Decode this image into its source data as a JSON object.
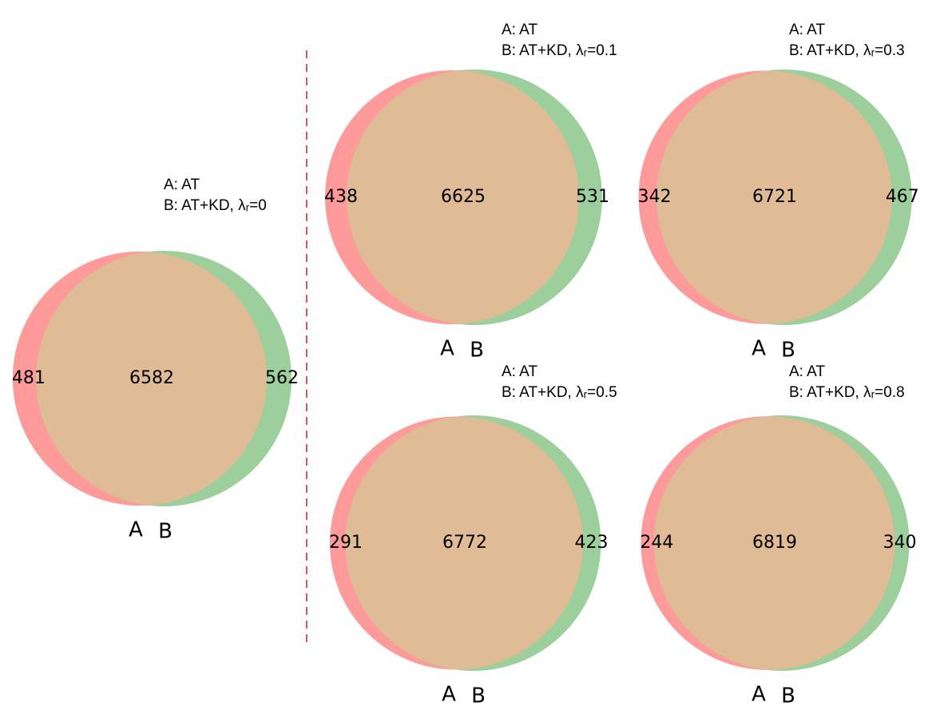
{
  "chart_data": [
    {
      "type": "venn",
      "legend": [
        "A:  AT",
        "B:  AT+KD, λᵣ=0"
      ],
      "set_labels": [
        "A",
        "B"
      ],
      "only_a": 481,
      "both": 6582,
      "only_b": 562,
      "colors": [
        "#ff9a9a",
        "#9ccf9c",
        "#dfbb96"
      ]
    },
    {
      "type": "venn",
      "legend": [
        "A:  AT",
        "B:  AT+KD, λᵣ=0.1"
      ],
      "set_labels": [
        "A",
        "B"
      ],
      "only_a": 438,
      "both": 6625,
      "only_b": 531,
      "colors": [
        "#ff9a9a",
        "#9ccf9c",
        "#dfbb96"
      ]
    },
    {
      "type": "venn",
      "legend": [
        "A:  AT",
        "B:  AT+KD, λᵣ=0.3"
      ],
      "set_labels": [
        "A",
        "B"
      ],
      "only_a": 342,
      "both": 6721,
      "only_b": 467,
      "colors": [
        "#ff9a9a",
        "#9ccf9c",
        "#dfbb96"
      ]
    },
    {
      "type": "venn",
      "legend": [
        "A:  AT",
        "B:  AT+KD, λᵣ=0.5"
      ],
      "set_labels": [
        "A",
        "B"
      ],
      "only_a": 291,
      "both": 6772,
      "only_b": 423,
      "colors": [
        "#ff9a9a",
        "#9ccf9c",
        "#dfbb96"
      ]
    },
    {
      "type": "venn",
      "legend": [
        "A:  AT",
        "B:  AT+KD, λᵣ=0.8"
      ],
      "set_labels": [
        "A",
        "B"
      ],
      "only_a": 244,
      "both": 6819,
      "only_b": 340,
      "colors": [
        "#ff9a9a",
        "#9ccf9c",
        "#dfbb96"
      ]
    }
  ]
}
